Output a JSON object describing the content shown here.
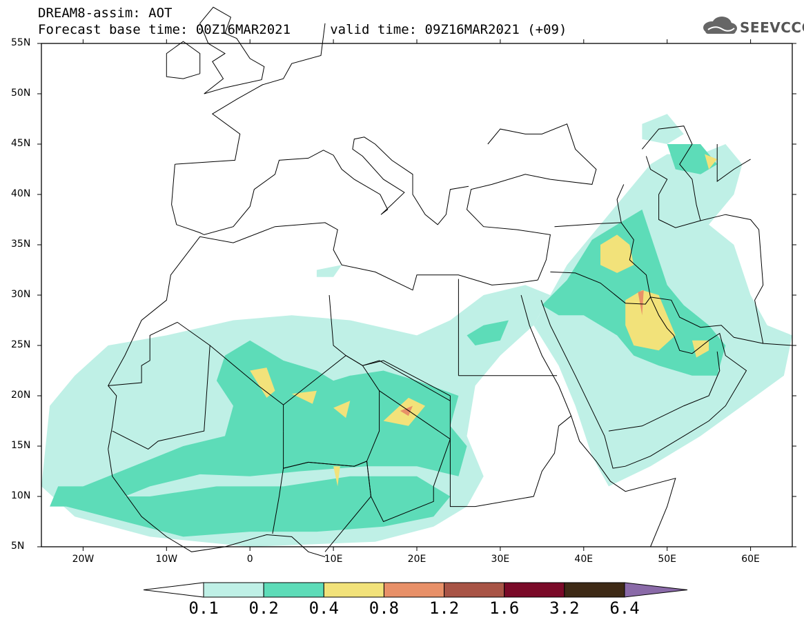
{
  "header": {
    "line1": "DREAM8-assim: AOT",
    "line2": "Forecast base time: 00Z16MAR2021     valid time: 09Z16MAR2021 (+09)",
    "logo_text": "SEEVCCC"
  },
  "map": {
    "lat_range": [
      5,
      55
    ],
    "lon_range": [
      -25,
      65
    ],
    "lat_labels": [
      "55N",
      "50N",
      "45N",
      "40N",
      "35N",
      "30N",
      "25N",
      "20N",
      "15N",
      "10N",
      "5N"
    ],
    "lon_labels": [
      "20W",
      "10W",
      "0",
      "10E",
      "20E",
      "30E",
      "40E",
      "50E",
      "60E"
    ]
  },
  "colorbar": {
    "labels": [
      "0.1",
      "0.2",
      "0.4",
      "0.8",
      "1.2",
      "1.6",
      "3.2",
      "6.4"
    ],
    "colors": [
      "#bff0e6",
      "#5ddcb8",
      "#f2e27a",
      "#e89068",
      "#a85446",
      "#7a0a28",
      "#3e2a16",
      "#8a6aa8"
    ]
  }
}
